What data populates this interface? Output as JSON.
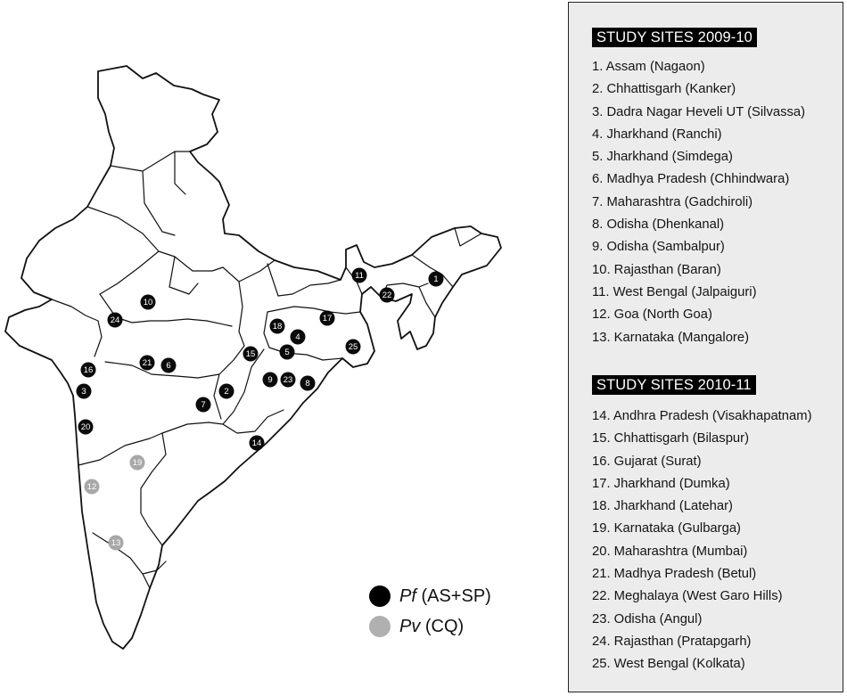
{
  "legend": {
    "pf": {
      "abbrev": "Pf",
      "rest": " (AS+SP)",
      "color": "#000000"
    },
    "pv": {
      "abbrev": "Pv",
      "rest": " (CQ)",
      "color": "#b0b0b0"
    }
  },
  "panel": {
    "section1": {
      "title": "STUDY SITES 2009-10",
      "items": [
        "1. Assam (Nagaon)",
        "2. Chhattisgarh (Kanker)",
        "3. Dadra Nagar Heveli UT (Silvassa)",
        "4. Jharkhand (Ranchi)",
        "5. Jharkhand (Simdega)",
        "6. Madhya Pradesh (Chhindwara)",
        "7. Maharashtra (Gadchiroli)",
        "8. Odisha (Dhenkanal)",
        "9. Odisha (Sambalpur)",
        "10. Rajasthan (Baran)",
        "11. West Bengal (Jalpaiguri)",
        "12. Goa (North Goa)",
        "13. Karnataka (Mangalore)"
      ]
    },
    "section2": {
      "title": "STUDY SITES 2010-11",
      "items": [
        "14. Andhra Pradesh (Visakhapatnam)",
        "15. Chhattisgarh (Bilaspur)",
        "16. Gujarat (Surat)",
        "17. Jharkhand (Dumka)",
        "18. Jharkhand (Latehar)",
        "19. Karnataka (Gulbarga)",
        "20. Maharashtra (Mumbai)",
        "21. Madhya Pradesh (Betul)",
        "22. Meghalaya (West Garo Hills)",
        "23. Odisha (Angul)",
        "24. Rajasthan (Pratapgarh)",
        "25. West Bengal (Kolkata)"
      ]
    }
  },
  "map": {
    "markers": [
      {
        "label": "1",
        "type": "pf"
      },
      {
        "label": "2",
        "type": "pf"
      },
      {
        "label": "3",
        "type": "pf"
      },
      {
        "label": "4",
        "type": "pf"
      },
      {
        "label": "5",
        "type": "pf"
      },
      {
        "label": "6",
        "type": "pf"
      },
      {
        "label": "7",
        "type": "pf"
      },
      {
        "label": "8",
        "type": "pf"
      },
      {
        "label": "9",
        "type": "pf"
      },
      {
        "label": "10",
        "type": "pf"
      },
      {
        "label": "11",
        "type": "pf"
      },
      {
        "label": "12",
        "type": "pv"
      },
      {
        "label": "13",
        "type": "pv"
      },
      {
        "label": "14",
        "type": "pf"
      },
      {
        "label": "15",
        "type": "pf"
      },
      {
        "label": "16",
        "type": "pf"
      },
      {
        "label": "17",
        "type": "pf"
      },
      {
        "label": "18",
        "type": "pf"
      },
      {
        "label": "19",
        "type": "pv"
      },
      {
        "label": "20",
        "type": "pf"
      },
      {
        "label": "21",
        "type": "pf"
      },
      {
        "label": "22",
        "type": "pf"
      },
      {
        "label": "23",
        "type": "pf"
      },
      {
        "label": "24",
        "type": "pf"
      },
      {
        "label": "25",
        "type": "pf"
      }
    ]
  }
}
